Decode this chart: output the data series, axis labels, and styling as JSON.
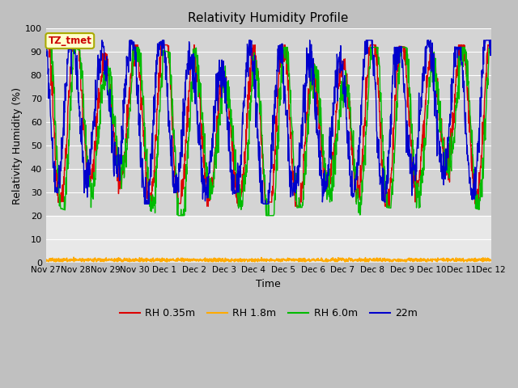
{
  "title": "Relativity Humidity Profile",
  "xlabel": "Time",
  "ylabel": "Relativity Humidity (%)",
  "ylim": [
    0,
    100
  ],
  "xlim": [
    0,
    15
  ],
  "fig_bg": "#c8c8c8",
  "plot_bg_upper": "#d8d8d8",
  "plot_bg_lower": "#e8e8e8",
  "grid_color": "#ffffff",
  "annotation_text": "TZ_tmet",
  "annotation_bg": "#ffffcc",
  "annotation_border": "#aaaa00",
  "series": [
    {
      "label": "RH 0.35m",
      "color": "#dd0000",
      "lw": 1.0
    },
    {
      "label": "RH 1.8m",
      "color": "#ffaa00",
      "lw": 1.2
    },
    {
      "label": "RH 6.0m",
      "color": "#00bb00",
      "lw": 1.0
    },
    {
      "label": "22m",
      "color": "#0000cc",
      "lw": 1.0
    }
  ],
  "xtick_labels": [
    "Nov 27",
    "Nov 28",
    "Nov 29",
    "Nov 30",
    "Dec 1",
    "Dec 2",
    "Dec 3",
    "Dec 4",
    "Dec 5",
    "Dec 6",
    "Dec 7",
    "Dec 8",
    "Dec 9",
    "Dec 10",
    "Dec 11",
    "Dec 12"
  ],
  "ytick_labels": [
    0,
    10,
    20,
    30,
    40,
    50,
    60,
    70,
    80,
    90,
    100
  ],
  "n_days": 15,
  "n_points": 1440,
  "seed": 12345
}
